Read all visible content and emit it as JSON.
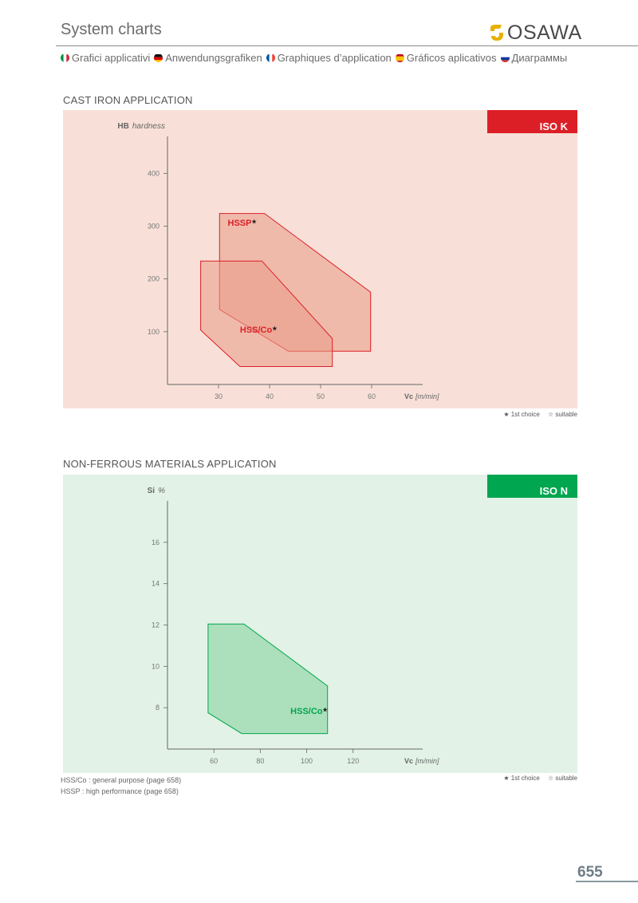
{
  "header": {
    "title": "System charts",
    "brand": "OSAWA"
  },
  "languages": [
    {
      "label": "Grafici applicativi",
      "flag": "italy-flag-icon"
    },
    {
      "label": "Anwendungsgrafiken",
      "flag": "germany-flag-icon"
    },
    {
      "label": "Graphiques d’application",
      "flag": "france-flag-icon"
    },
    {
      "label": "Gráficos aplicativos",
      "flag": "spain-flag-icon"
    },
    {
      "label": "Диаграммы",
      "flag": "russia-flag-icon"
    }
  ],
  "colors": {
    "iso_k": "#dc1f26",
    "iso_k_bg": "#f8e0d8",
    "iso_k_region": "#ea9a86",
    "iso_n": "#00a650",
    "iso_n_bg": "#e2f2e6",
    "iso_n_region": "#7fcf97"
  },
  "chart_data": [
    {
      "type": "area",
      "section_title": "CAST IRON APPLICATION",
      "badge": "ISO K",
      "ylabel_bold": "HB",
      "ylabel_rest": "hardness",
      "xlabel_bold": "Vc",
      "xlabel_rest": "[m/min]",
      "xlim": [
        20,
        70
      ],
      "ylim": [
        0,
        470
      ],
      "x_ticks": [
        30,
        40,
        50,
        60
      ],
      "y_ticks": [
        100,
        200,
        300,
        400
      ],
      "grid": false,
      "series": [
        {
          "name": "HSSP",
          "marker": "★",
          "label_x": 31.8,
          "label_y": 301,
          "points": [
            [
              30.2,
              324
            ],
            [
              39,
              324
            ],
            [
              59.8,
              175
            ],
            [
              59.8,
              63
            ],
            [
              43.7,
              63
            ],
            [
              30.2,
              142
            ]
          ]
        },
        {
          "name": "HSS/Co",
          "marker": "★",
          "label_x": 34.2,
          "label_y": 98,
          "points": [
            [
              26.5,
              234
            ],
            [
              38.5,
              234
            ],
            [
              52.3,
              87
            ],
            [
              52.3,
              34
            ],
            [
              34.2,
              34
            ],
            [
              26.5,
              103
            ]
          ]
        }
      ],
      "legend": {
        "first": "★ 1st choice",
        "second": "☆ suitable"
      }
    },
    {
      "type": "area",
      "section_title": "NON-FERROUS MATERIALS APPLICATION",
      "badge": "ISO N",
      "ylabel_bold": "Si",
      "ylabel_rest": "%",
      "xlabel_bold": "Vc",
      "xlabel_rest": "[m/min]",
      "xlim": [
        40,
        150
      ],
      "ylim": [
        6,
        18
      ],
      "x_ticks": [
        60,
        80,
        100,
        120
      ],
      "y_ticks": [
        8,
        10,
        12,
        14,
        16
      ],
      "grid": false,
      "series": [
        {
          "name": "HSS/Co",
          "marker": "★",
          "label_x": 93,
          "label_y": 7.7,
          "points": [
            [
              57.5,
              12.05
            ],
            [
              73,
              12.05
            ],
            [
              109,
              9.05
            ],
            [
              109,
              6.75
            ],
            [
              72,
              6.75
            ],
            [
              57.5,
              7.75
            ]
          ]
        }
      ],
      "legend": {
        "first": "★ 1st choice",
        "second": "☆ suitable"
      }
    }
  ],
  "footnotes": [
    "HSS/Co : general purpose (page 658)",
    "HSSP : high performance (page 658)"
  ],
  "page_number": "655"
}
